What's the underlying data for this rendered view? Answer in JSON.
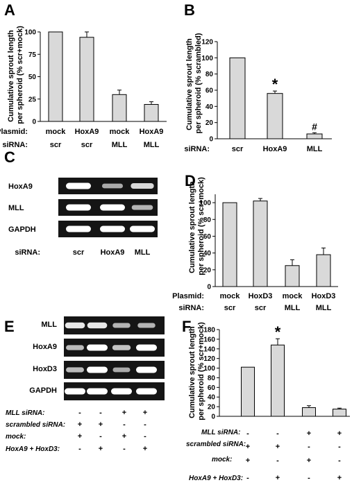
{
  "panels": {
    "A": {
      "label": "A",
      "ylabel": "Cumulative sprout length per spheroid (% scr+mock)",
      "ylabel_lines": [
        "Cumulative sprout length",
        "per spheroid (% scr+mock)"
      ],
      "row1_label": "Plasmid:",
      "row1": [
        "mock",
        "HoxA9",
        "mock",
        "HoxA9"
      ],
      "row2_label": "siRNA:",
      "row2": [
        "scr",
        "scr",
        "MLL",
        "MLL"
      ]
    },
    "B": {
      "label": "B",
      "ylabel": "Cumulative sprout length per spheroid (% scrambled)",
      "ylabel_lines": [
        "Cumulative sprout length",
        "per spheroid (% scrambled)"
      ],
      "row1_label": "siRNA:",
      "row1": [
        "scr",
        "HoxA9",
        "MLL"
      ],
      "marks": [
        "",
        "*",
        "#"
      ]
    },
    "C": {
      "label": "C",
      "genes": [
        "HoxA9",
        "MLL",
        "GAPDH"
      ],
      "row_label": "siRNA:",
      "row": [
        "scr",
        "HoxA9",
        "MLL"
      ]
    },
    "D": {
      "label": "D",
      "ylabel": "Cumulative sprout length per spheroid (% scr+mock)",
      "ylabel_lines": [
        "Cumulative sprout length",
        "per spheroid (% scr+mock)"
      ],
      "row1_label": "Plasmid:",
      "row1": [
        "mock",
        "HoxD3",
        "mock",
        "HoxD3"
      ],
      "row2_label": "siRNA:",
      "row2": [
        "scr",
        "scr",
        "MLL",
        "MLL"
      ]
    },
    "E": {
      "label": "E",
      "genes": [
        "MLL",
        "HoxA9",
        "HoxD3",
        "GAPDH"
      ],
      "row_labels": [
        "MLL siRNA:",
        "scrambled siRNA:",
        "mock:",
        "HoxA9 + HoxD3:"
      ],
      "rows": [
        [
          "-",
          "-",
          "+",
          "+"
        ],
        [
          "+",
          "+",
          "-",
          "-"
        ],
        [
          "+",
          "-",
          "+",
          "-"
        ],
        [
          "-",
          "+",
          "-",
          "+"
        ]
      ]
    },
    "F": {
      "label": "F",
      "ylabel": "Cumulative sprout length per spheroid (% scr+mock)",
      "ylabel_lines": [
        "Cumulative sprout length",
        "per spheroid (% scr+mock)"
      ],
      "row_labels": [
        "MLL siRNA:",
        "scrambled siRNA:",
        "mock:",
        "HoxA9 + HoxD3:"
      ],
      "rows": [
        [
          "-",
          "-",
          "+",
          "+"
        ],
        [
          "+",
          "+",
          "-",
          "-"
        ],
        [
          "+",
          "-",
          "+",
          "-"
        ],
        [
          "-",
          "+",
          "-",
          "+"
        ]
      ],
      "marks": [
        "",
        "*",
        "",
        ""
      ]
    }
  },
  "chart_data": [
    {
      "panel": "A",
      "type": "bar",
      "categories": [
        "mock / scr",
        "HoxA9 / scr",
        "mock / MLL",
        "HoxA9 / MLL"
      ],
      "values": [
        100,
        94,
        30,
        19
      ],
      "errors": [
        0,
        6,
        5,
        3
      ],
      "ylim": [
        0,
        100
      ],
      "yticks": [
        0,
        25,
        50,
        75,
        100
      ],
      "ylabel": "Cumulative sprout length per spheroid (% scr+mock)",
      "grid": false
    },
    {
      "panel": "B",
      "type": "bar",
      "categories": [
        "scr",
        "HoxA9",
        "MLL"
      ],
      "values": [
        100,
        56,
        6
      ],
      "errors": [
        0,
        3,
        1.5
      ],
      "ylim": [
        0,
        120
      ],
      "yticks": [
        0,
        20,
        40,
        60,
        80,
        100,
        120
      ],
      "ylabel": "Cumulative sprout length per spheroid (% scrambled)",
      "grid": false
    },
    {
      "panel": "D",
      "type": "bar",
      "categories": [
        "mock / scr",
        "HoxD3 / scr",
        "mock / MLL",
        "HoxD3 / MLL"
      ],
      "values": [
        100,
        102,
        25,
        38
      ],
      "errors": [
        0,
        3,
        7,
        8
      ],
      "ylim": [
        0,
        110
      ],
      "yticks": [
        0,
        20,
        40,
        60,
        80,
        100
      ],
      "ylabel": "Cumulative sprout length per spheroid (% scr+mock)",
      "grid": false
    },
    {
      "panel": "F",
      "type": "bar",
      "categories": [
        "scr + mock",
        "scr + HoxA9/HoxD3",
        "MLL + mock",
        "MLL + HoxA9/HoxD3"
      ],
      "values": [
        102,
        148,
        18,
        15
      ],
      "errors": [
        0,
        13,
        4,
        2
      ],
      "ylim": [
        0,
        180
      ],
      "yticks": [
        0,
        20,
        40,
        60,
        80,
        100,
        120,
        140,
        160,
        180
      ],
      "ylabel": "Cumulative sprout length per spheroid (% scr+mock)",
      "grid": false
    }
  ],
  "blots": {
    "C": {
      "HoxA9": [
        1.0,
        0.45,
        0.75
      ],
      "MLL": [
        1.0,
        1.0,
        0.5
      ],
      "GAPDH": [
        1.0,
        1.0,
        1.0
      ]
    },
    "E": {
      "MLL": [
        0.85,
        0.85,
        0.5,
        0.5
      ],
      "HoxA9": [
        0.55,
        1.0,
        0.6,
        1.0
      ],
      "HoxD3": [
        0.55,
        1.0,
        0.45,
        1.0
      ],
      "GAPDH": [
        1.0,
        1.0,
        1.0,
        1.0
      ]
    }
  }
}
